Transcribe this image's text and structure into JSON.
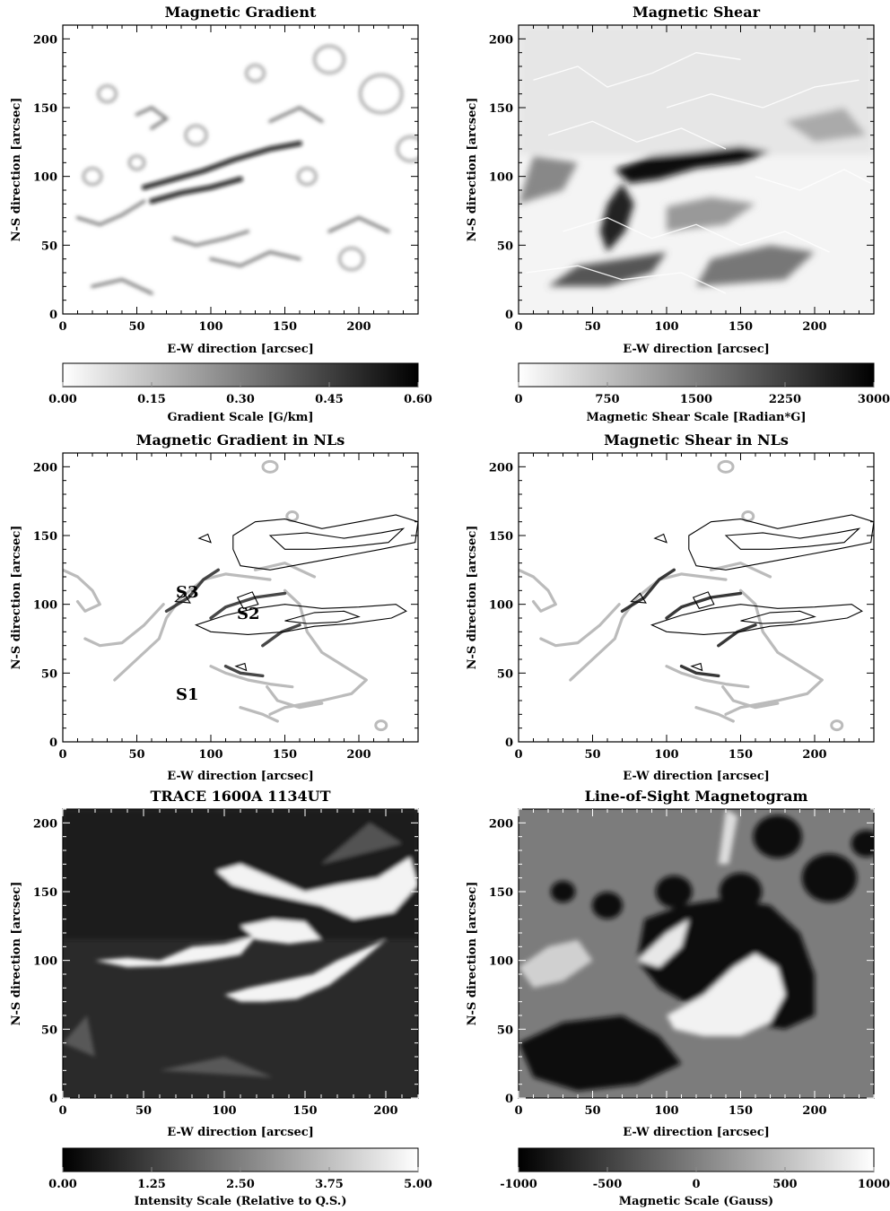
{
  "figure": {
    "panels": [
      {
        "id": "mag-gradient",
        "title": "Magnetic Gradient",
        "xlabel": "E-W direction [arcsec]",
        "ylabel": "N-S direction [arcsec]",
        "x_ticks": [
          "0",
          "50",
          "100",
          "150",
          "200"
        ],
        "y_ticks": [
          "0",
          "50",
          "100",
          "150",
          "200"
        ],
        "xlim": [
          0,
          240
        ],
        "ylim": [
          0,
          210
        ],
        "style": "gradient",
        "colorbar": {
          "label": "Gradient Scale [G/km]",
          "ticks": [
            "0.00",
            "0.15",
            "0.30",
            "0.45",
            "0.60"
          ],
          "from": "#ffffff",
          "to": "#000000"
        }
      },
      {
        "id": "mag-shear",
        "title": "Magnetic Shear",
        "xlabel": "E-W direction [arcsec]",
        "ylabel": "N-S direction [arcsec]",
        "x_ticks": [
          "0",
          "50",
          "100",
          "150",
          "200"
        ],
        "y_ticks": [
          "0",
          "50",
          "100",
          "150",
          "200"
        ],
        "xlim": [
          0,
          240
        ],
        "ylim": [
          0,
          210
        ],
        "style": "shear",
        "colorbar": {
          "label": "Magnetic Shear Scale [Radian*G]",
          "ticks": [
            "0",
            "750",
            "1500",
            "2250",
            "3000"
          ],
          "from": "#ffffff",
          "to": "#000000"
        }
      },
      {
        "id": "gradient-nl",
        "title": "Magnetic Gradient in NLs",
        "xlabel": "E-W direction [arcsec]",
        "ylabel": "N-S direction [arcsec]",
        "x_ticks": [
          "0",
          "50",
          "100",
          "150",
          "200"
        ],
        "y_ticks": [
          "0",
          "50",
          "100",
          "150",
          "200"
        ],
        "xlim": [
          0,
          240
        ],
        "ylim": [
          0,
          210
        ],
        "style": "nl",
        "annotations": [
          "S3",
          "S2",
          "S1"
        ]
      },
      {
        "id": "shear-nl",
        "title": "Magnetic Shear in NLs",
        "xlabel": "E-W direction [arcsec]",
        "ylabel": "N-S direction [arcsec]",
        "x_ticks": [
          "0",
          "50",
          "100",
          "150",
          "200"
        ],
        "y_ticks": [
          "0",
          "50",
          "100",
          "150",
          "200"
        ],
        "xlim": [
          0,
          240
        ],
        "ylim": [
          0,
          210
        ],
        "style": "nl"
      },
      {
        "id": "trace",
        "title": "TRACE 1600A 1134UT",
        "xlabel": "E-W direction [arcsec]",
        "ylabel": "N-S direction [arcsec]",
        "x_ticks": [
          "0",
          "50",
          "100",
          "150",
          "200"
        ],
        "y_ticks": [
          "0",
          "50",
          "100",
          "150",
          "200"
        ],
        "xlim": [
          0,
          220
        ],
        "ylim": [
          0,
          210
        ],
        "style": "trace",
        "colorbar": {
          "label": "Intensity Scale (Relative to Q.S.)",
          "ticks": [
            "0.00",
            "1.25",
            "2.50",
            "3.75",
            "5.00"
          ],
          "from": "#000000",
          "to": "#ffffff"
        }
      },
      {
        "id": "magnetogram",
        "title": "Line-of-Sight Magnetogram",
        "xlabel": "E-W direction [arcsec]",
        "ylabel": "N-S direction [arcsec]",
        "x_ticks": [
          "0",
          "50",
          "100",
          "150",
          "200"
        ],
        "y_ticks": [
          "0",
          "50",
          "100",
          "150",
          "200"
        ],
        "xlim": [
          0,
          240
        ],
        "ylim": [
          0,
          210
        ],
        "style": "mag",
        "colorbar": {
          "label": "Magnetic Scale (Gauss)",
          "ticks": [
            "-1000",
            "-500",
            "0",
            "500",
            "1000"
          ],
          "from": "#000000",
          "to": "#ffffff"
        }
      }
    ]
  }
}
